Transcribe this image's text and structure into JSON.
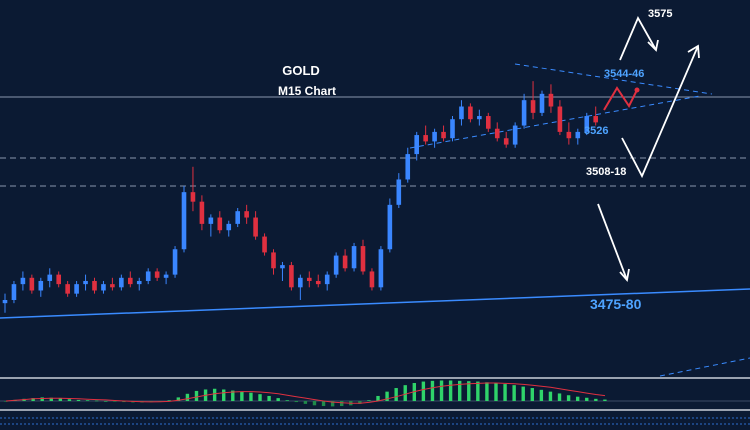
{
  "title": "GOLD",
  "subtitle": "M15 Chart",
  "labels": {
    "upper_target": "3575",
    "resistance": "3544-46",
    "pivot": "3526",
    "support": "3508-18",
    "trendline": "3475-80"
  },
  "colors": {
    "background": "#0b1a33",
    "bull": "#3a86ff",
    "bear": "#e03040",
    "trendline": "#3a8bff",
    "label_blue": "#4ea3ff",
    "label_white": "#ffffff",
    "hist_pos": "#2fd36a",
    "signal": "#e03040"
  },
  "chart_data": {
    "type": "candlestick",
    "symbol": "GOLD",
    "timeframe": "M15",
    "levels": [
      {
        "label": "3575",
        "value": 3575
      },
      {
        "label": "3544-46",
        "value": [
          3544,
          3546
        ]
      },
      {
        "label": "3526",
        "value": 3526
      },
      {
        "label": "3508-18",
        "value": [
          3508,
          3518
        ]
      },
      {
        "label": "3475-80",
        "value": [
          3475,
          3480
        ]
      }
    ],
    "candles": [
      [
        3479,
        3482,
        3476,
        3480
      ],
      [
        3480,
        3486,
        3479,
        3485
      ],
      [
        3485,
        3489,
        3483,
        3487
      ],
      [
        3487,
        3488,
        3482,
        3483
      ],
      [
        3483,
        3487,
        3481,
        3486
      ],
      [
        3486,
        3490,
        3484,
        3488
      ],
      [
        3488,
        3489,
        3484,
        3485
      ],
      [
        3485,
        3486,
        3481,
        3482
      ],
      [
        3482,
        3486,
        3481,
        3485
      ],
      [
        3485,
        3488,
        3483,
        3486
      ],
      [
        3486,
        3487,
        3482,
        3483
      ],
      [
        3483,
        3486,
        3482,
        3485
      ],
      [
        3485,
        3487,
        3483,
        3484
      ],
      [
        3484,
        3488,
        3483,
        3487
      ],
      [
        3487,
        3489,
        3484,
        3485
      ],
      [
        3485,
        3487,
        3483,
        3486
      ],
      [
        3486,
        3490,
        3485,
        3489
      ],
      [
        3489,
        3490,
        3486,
        3487
      ],
      [
        3487,
        3489,
        3485,
        3488
      ],
      [
        3488,
        3497,
        3487,
        3496
      ],
      [
        3496,
        3516,
        3495,
        3514
      ],
      [
        3514,
        3522,
        3508,
        3511
      ],
      [
        3511,
        3513,
        3502,
        3504
      ],
      [
        3504,
        3507,
        3500,
        3506
      ],
      [
        3506,
        3508,
        3501,
        3502
      ],
      [
        3502,
        3505,
        3500,
        3504
      ],
      [
        3504,
        3509,
        3503,
        3508
      ],
      [
        3508,
        3510,
        3504,
        3506
      ],
      [
        3506,
        3508,
        3499,
        3500
      ],
      [
        3500,
        3501,
        3494,
        3495
      ],
      [
        3495,
        3496,
        3488,
        3490
      ],
      [
        3490,
        3492,
        3486,
        3491
      ],
      [
        3491,
        3492,
        3483,
        3484
      ],
      [
        3484,
        3488,
        3480,
        3487
      ],
      [
        3487,
        3489,
        3484,
        3486
      ],
      [
        3486,
        3488,
        3484,
        3485
      ],
      [
        3485,
        3489,
        3483,
        3488
      ],
      [
        3488,
        3495,
        3487,
        3494
      ],
      [
        3494,
        3496,
        3489,
        3490
      ],
      [
        3490,
        3498,
        3489,
        3497
      ],
      [
        3497,
        3499,
        3488,
        3489
      ],
      [
        3489,
        3490,
        3483,
        3484
      ],
      [
        3484,
        3497,
        3483,
        3496
      ],
      [
        3496,
        3512,
        3495,
        3510
      ],
      [
        3510,
        3520,
        3509,
        3518
      ],
      [
        3518,
        3528,
        3517,
        3526
      ],
      [
        3526,
        3533,
        3524,
        3532
      ],
      [
        3532,
        3535,
        3529,
        3530
      ],
      [
        3530,
        3534,
        3528,
        3533
      ],
      [
        3533,
        3535,
        3530,
        3531
      ],
      [
        3531,
        3538,
        3530,
        3537
      ],
      [
        3537,
        3543,
        3535,
        3541
      ],
      [
        3541,
        3542,
        3536,
        3537
      ],
      [
        3537,
        3540,
        3535,
        3538
      ],
      [
        3538,
        3539,
        3533,
        3534
      ],
      [
        3534,
        3536,
        3530,
        3531
      ],
      [
        3531,
        3533,
        3528,
        3529
      ],
      [
        3529,
        3536,
        3528,
        3535
      ],
      [
        3535,
        3545,
        3534,
        3543
      ],
      [
        3543,
        3549,
        3537,
        3539
      ],
      [
        3539,
        3546,
        3538,
        3545
      ],
      [
        3545,
        3548,
        3539,
        3541
      ],
      [
        3541,
        3543,
        3532,
        3533
      ],
      [
        3533,
        3536,
        3529,
        3531
      ],
      [
        3531,
        3534,
        3529,
        3533
      ],
      [
        3533,
        3539,
        3532,
        3538
      ],
      [
        3538,
        3541,
        3535,
        3536
      ]
    ],
    "indicator": {
      "name": "MACD histogram",
      "histogram": [
        -0.2,
        0.3,
        0.6,
        0.8,
        1,
        0.9,
        0.7,
        0.5,
        0.3,
        0.2,
        0.1,
        0,
        -0.2,
        -0.3,
        -0.4,
        -0.4,
        -0.3,
        -0.2,
        0.2,
        1,
        2,
        2.8,
        3.2,
        3.4,
        3.2,
        2.9,
        2.6,
        2.3,
        1.9,
        1.4,
        0.8,
        0.2,
        -0.3,
        -0.8,
        -1.2,
        -1.4,
        -1.5,
        -1.4,
        -1.2,
        -0.8,
        0.2,
        1.4,
        2.6,
        3.6,
        4.4,
        5,
        5.4,
        5.6,
        5.7,
        5.7,
        5.6,
        5.5,
        5.4,
        5.2,
        5,
        4.7,
        4.4,
        4,
        3.6,
        3.1,
        2.6,
        2.1,
        1.6,
        1.2,
        0.9,
        0.6,
        0.4
      ],
      "signal": [
        0,
        0.2,
        0.4,
        0.6,
        0.7,
        0.75,
        0.75,
        0.7,
        0.6,
        0.5,
        0.4,
        0.3,
        0.15,
        0,
        -0.1,
        -0.2,
        -0.25,
        -0.2,
        -0.1,
        0.2,
        0.6,
        1.1,
        1.6,
        2,
        2.3,
        2.5,
        2.6,
        2.6,
        2.5,
        2.3,
        2,
        1.6,
        1.2,
        0.8,
        0.4,
        0,
        -0.3,
        -0.5,
        -0.6,
        -0.6,
        -0.4,
        0,
        0.6,
        1.2,
        1.9,
        2.6,
        3.2,
        3.7,
        4.1,
        4.4,
        4.6,
        4.8,
        4.9,
        5,
        5,
        4.9,
        4.8,
        4.6,
        4.4,
        4.1,
        3.8,
        3.4,
        3,
        2.6,
        2.2,
        1.8,
        1.5
      ]
    }
  }
}
